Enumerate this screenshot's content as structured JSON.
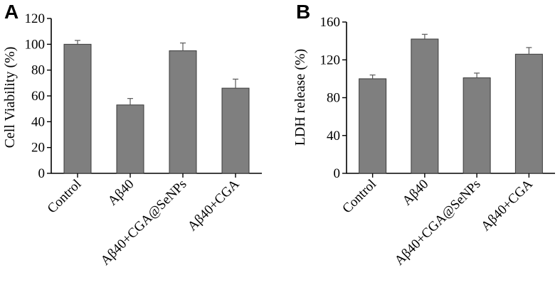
{
  "chart_data": [
    {
      "panel": "A",
      "type": "bar",
      "title": "",
      "xlabel": "",
      "ylabel": "Cell Viability (%)",
      "ylim": [
        0,
        120
      ],
      "yticks": [
        0,
        20,
        40,
        60,
        80,
        100,
        120
      ],
      "categories": [
        "Control",
        "Aβ40",
        "Aβ40+CGA@SeNPs",
        "Aβ40+CGA"
      ],
      "values": [
        100,
        53,
        95,
        66
      ],
      "errors": [
        3,
        5,
        6,
        7
      ]
    },
    {
      "panel": "B",
      "type": "bar",
      "title": "",
      "xlabel": "",
      "ylabel": "LDH release (%)",
      "ylim": [
        0,
        160
      ],
      "yticks": [
        0,
        40,
        80,
        120,
        160
      ],
      "categories": [
        "Control",
        "Aβ40",
        "Aβ40+CGA@SeNPs",
        "Aβ40+CGA"
      ],
      "values": [
        100,
        142,
        101,
        126
      ],
      "errors": [
        4,
        5,
        5,
        7
      ]
    }
  ],
  "colors": {
    "bar": "#7f7f7f",
    "bar_edge": "#3a3a3a",
    "axis": "#000000"
  }
}
